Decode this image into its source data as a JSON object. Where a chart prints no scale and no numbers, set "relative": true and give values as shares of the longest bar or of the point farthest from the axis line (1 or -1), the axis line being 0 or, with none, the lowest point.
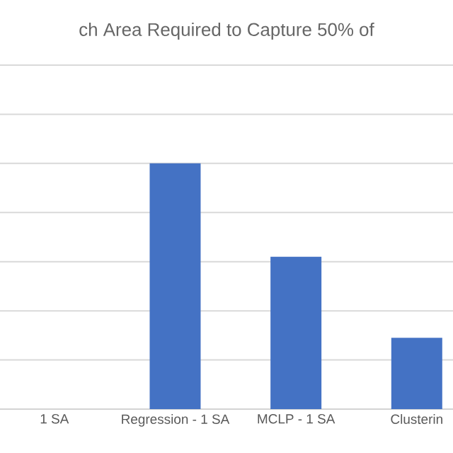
{
  "chart_data": {
    "type": "bar",
    "title": "ch Area Required to Capture 50% of",
    "categories": [
      "1 SA",
      "Regression - 1 SA",
      "MCLP - 1 SA",
      "Clusterin"
    ],
    "values": [
      null,
      1,
      0.62,
      0.29
    ],
    "color": "#4472c4",
    "relative": true,
    "grid": "y"
  }
}
